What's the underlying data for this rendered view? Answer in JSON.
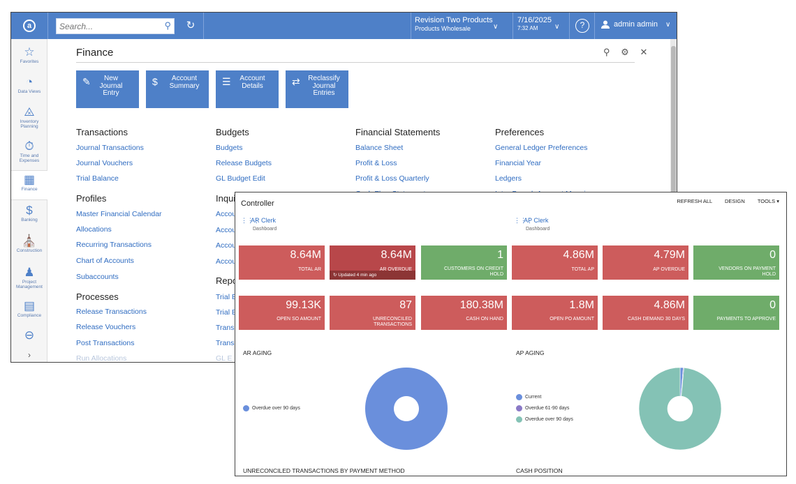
{
  "topbar": {
    "search_placeholder": "Search...",
    "company_line1": "Revision Two Products",
    "company_line2": "Products Wholesale",
    "date": "7/16/2025",
    "time": "7:32 AM",
    "user": "admin admin",
    "accent": "#4e80c8"
  },
  "sidebar": {
    "items": [
      {
        "label": "Favorites",
        "icon": "star-icon"
      },
      {
        "label": "Data Views",
        "icon": "pie-icon"
      },
      {
        "label": "Inventory Planning",
        "icon": "cart-icon"
      },
      {
        "label": "Time and Expenses",
        "icon": "timer-icon"
      },
      {
        "label": "Finance",
        "icon": "calculator-icon"
      },
      {
        "label": "Banking",
        "icon": "dollar-icon"
      },
      {
        "label": "Construction",
        "icon": "building-icon"
      },
      {
        "label": "Project Management",
        "icon": "people-icon"
      },
      {
        "label": "Compliance",
        "icon": "document-icon"
      },
      {
        "label": "More",
        "icon": "more-icon"
      }
    ]
  },
  "finance": {
    "title": "Finance",
    "tiles": [
      {
        "label": "New Journal Entry",
        "icon": "edit-icon"
      },
      {
        "label": "Account Summary",
        "icon": "dollar-icon"
      },
      {
        "label": "Account Details",
        "icon": "list-icon"
      },
      {
        "label": "Reclassify Journal Entries",
        "icon": "arrows-icon"
      }
    ],
    "transactions": {
      "heading": "Transactions",
      "links": [
        "Journal Transactions",
        "Journal Vouchers",
        "Trial Balance"
      ]
    },
    "profiles": {
      "heading": "Profiles",
      "links": [
        "Master Financial Calendar",
        "Allocations",
        "Recurring Transactions",
        "Chart of Accounts",
        "Subaccounts"
      ]
    },
    "processes": {
      "heading": "Processes",
      "links": [
        "Release Transactions",
        "Release Vouchers",
        "Post Transactions",
        "Run Allocations"
      ]
    },
    "budgets": {
      "heading": "Budgets",
      "links": [
        "Budgets",
        "Release Budgets",
        "GL Budget Edit"
      ]
    },
    "inquiries": {
      "heading": "Inquiries",
      "links": [
        "Accou",
        "Accou",
        "Accou",
        "Accou"
      ]
    },
    "reports": {
      "heading": "Repo",
      "links": [
        "Trial B",
        "Trial B",
        "Trans",
        "Trans",
        "GL E"
      ]
    },
    "financial_statements": {
      "heading": "Financial Statements",
      "links": [
        "Balance Sheet",
        "Profit & Loss",
        "Profit & Loss Quarterly",
        "Cash Flow Statement"
      ]
    },
    "preferences": {
      "heading": "Preferences",
      "links": [
        "General Ledger Preferences",
        "Financial Year",
        "Ledgers",
        "Inter-Branch Account Mapping"
      ]
    }
  },
  "controller": {
    "title": "Controller",
    "actions": [
      "REFRESH ALL",
      "DESIGN",
      "TOOLS ▾"
    ],
    "ar_clerk": {
      "name": "AR Clerk",
      "sub": "Dashboard"
    },
    "ap_clerk": {
      "name": "AP Clerk",
      "sub": "Dashboard"
    },
    "kpis_row1": [
      {
        "value": "8.64M",
        "label": "TOTAL AR",
        "color": "red"
      },
      {
        "value": "8.64M",
        "label": "AR OVERDUE",
        "color": "dred",
        "updated": "Updated 4 min ago"
      },
      {
        "value": "1",
        "label": "CUSTOMERS ON CREDIT HOLD",
        "color": "green"
      },
      {
        "value": "4.86M",
        "label": "TOTAL AP",
        "color": "red"
      },
      {
        "value": "4.79M",
        "label": "AP OVERDUE",
        "color": "red"
      },
      {
        "value": "0",
        "label": "VENDORS ON PAYMENT HOLD",
        "color": "green"
      }
    ],
    "kpis_row2": [
      {
        "value": "99.13K",
        "label": "OPEN SO AMOUNT",
        "color": "red"
      },
      {
        "value": "87",
        "label": "UNRECONCILED TRANSACTIONS",
        "color": "red"
      },
      {
        "value": "180.38M",
        "label": "CASH ON HAND",
        "color": "red"
      },
      {
        "value": "1.8M",
        "label": "OPEN PO AMOUNT",
        "color": "red"
      },
      {
        "value": "4.86M",
        "label": "CASH DEMAND 30 DAYS",
        "color": "red"
      },
      {
        "value": "0",
        "label": "PAYMENTS TO APPROVE",
        "color": "green"
      }
    ],
    "ar_aging": {
      "title": "AR AGING",
      "legend": [
        {
          "label": "Overdue over 90 days",
          "color": "#6a8fdc"
        }
      ],
      "slices": [
        {
          "label": "Overdue over 90 days",
          "share": 1.0,
          "color": "#6a8fdc"
        }
      ]
    },
    "ap_aging": {
      "title": "AP AGING",
      "legend": [
        {
          "label": "Current",
          "color": "#6a8fdc"
        },
        {
          "label": "Overdue 61-90 days",
          "color": "#8a79c6"
        },
        {
          "label": "Overdue over 90 days",
          "color": "#84c2b5"
        }
      ],
      "slices": [
        {
          "label": "Current",
          "share": 0.012,
          "color": "#6a8fdc"
        },
        {
          "label": "Overdue 61-90 days",
          "share": 0.003,
          "color": "#8a79c6"
        },
        {
          "label": "Overdue over 90 days",
          "share": 0.985,
          "color": "#84c2b5"
        }
      ]
    },
    "unreconciled_title": "UNRECONCILED TRANSACTIONS BY PAYMENT METHOD",
    "cash_position_title": "CASH POSITION"
  }
}
